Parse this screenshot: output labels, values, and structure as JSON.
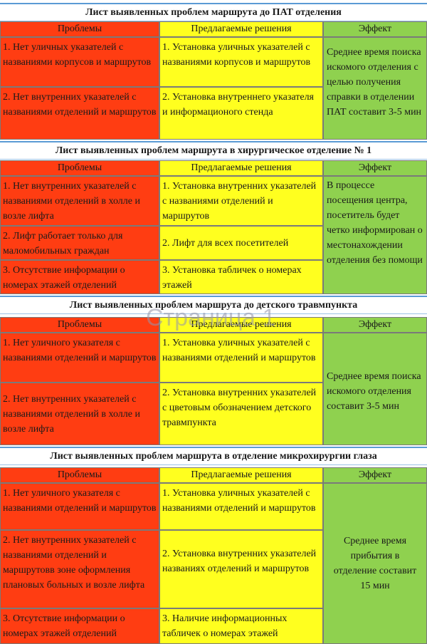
{
  "sections": [
    {
      "title": "Лист выявленных проблем маршрута до ПАТ отделения",
      "headers": [
        "Проблемы",
        "Предлагаемые решения",
        "Эффект"
      ],
      "problems": [
        "1. Нет уличных указателей с названиями корпусов и маршрутов",
        "2. Нет внутренних указателей с названиями отделений и маршрутов"
      ],
      "solutions": [
        "1. Установка уличных указателей с названиями корпусов и маршрутов",
        "2. Установка внутреннего указателя и информационого стенда"
      ],
      "effect": "Среднее время поиска искомого отделения с целью получения справки в отделении ПАТ составит 3-5 мин"
    },
    {
      "title": "Лист выявленных проблем маршрута в хирургическое отделение № 1",
      "headers": [
        "Проблемы",
        "Предлагаемые решения",
        "Эффект"
      ],
      "problems": [
        "1. Нет внутренних указателей с названиями отделений в холле и возле лифта",
        "2. Лифт работает только для маломобильных граждан",
        "3. Отсутствие информации о номерах этажей отделений"
      ],
      "solutions": [
        "1. Установка внутренних указателей с названиями отделений и маршрутов",
        "2.  Лифт для всех посетителей",
        "3. Установка табличек о номерах этажей"
      ],
      "effect": "В процессе посещения центра, посетитель будет четко информирован о местонахождении отделения без помощи"
    },
    {
      "title": "Лист выявленных проблем маршрута до детского травмпункта",
      "headers": [
        "Проблемы",
        "Предлагаемые решения",
        "Эффект"
      ],
      "problems": [
        "1. Нет уличного указателя с названиями отделений и маршрутов",
        "2. Нет внутренних указателей с названиями отделений в холле и возле лифта"
      ],
      "solutions": [
        "1. Установка уличных указателей с названиями отделений и маршрутов",
        "2. Установка внутренних указателей с цветовым обозначением детского травмпункта"
      ],
      "effect": "Среднее время поиска искомого отделения  составит 3-5 мин"
    },
    {
      "title": "Лист выявленных проблем маршрута в отделение микрохирургии глаза",
      "headers": [
        "Проблемы",
        "Предлагаемые решения",
        "Эффект"
      ],
      "problems": [
        "1. Нет уличного указателя с названиями отделений и маршрутов",
        "2. Нет внутренних указателей с названиями отделений и маршрутовв зоне оформления плановых больных и возле лифта",
        "3. Отсутствие информации о номерах этажей отделений"
      ],
      "solutions": [
        "1. Установка уличных указателей с названиями отделений и маршрутов",
        "2. Установка внутренних указателей названиях отделений и маршрутов",
        "3. Наличие информационных табличек о номерах этажей"
      ],
      "effect": "Среднее время прибытия в отделение составит 15 мин"
    }
  ],
  "watermark": "Страница 1",
  "colors": {
    "problems": "#ff3d12",
    "solutions": "#ffff1f",
    "effect": "#8fd14f",
    "title_border": "#5b9bd5"
  }
}
